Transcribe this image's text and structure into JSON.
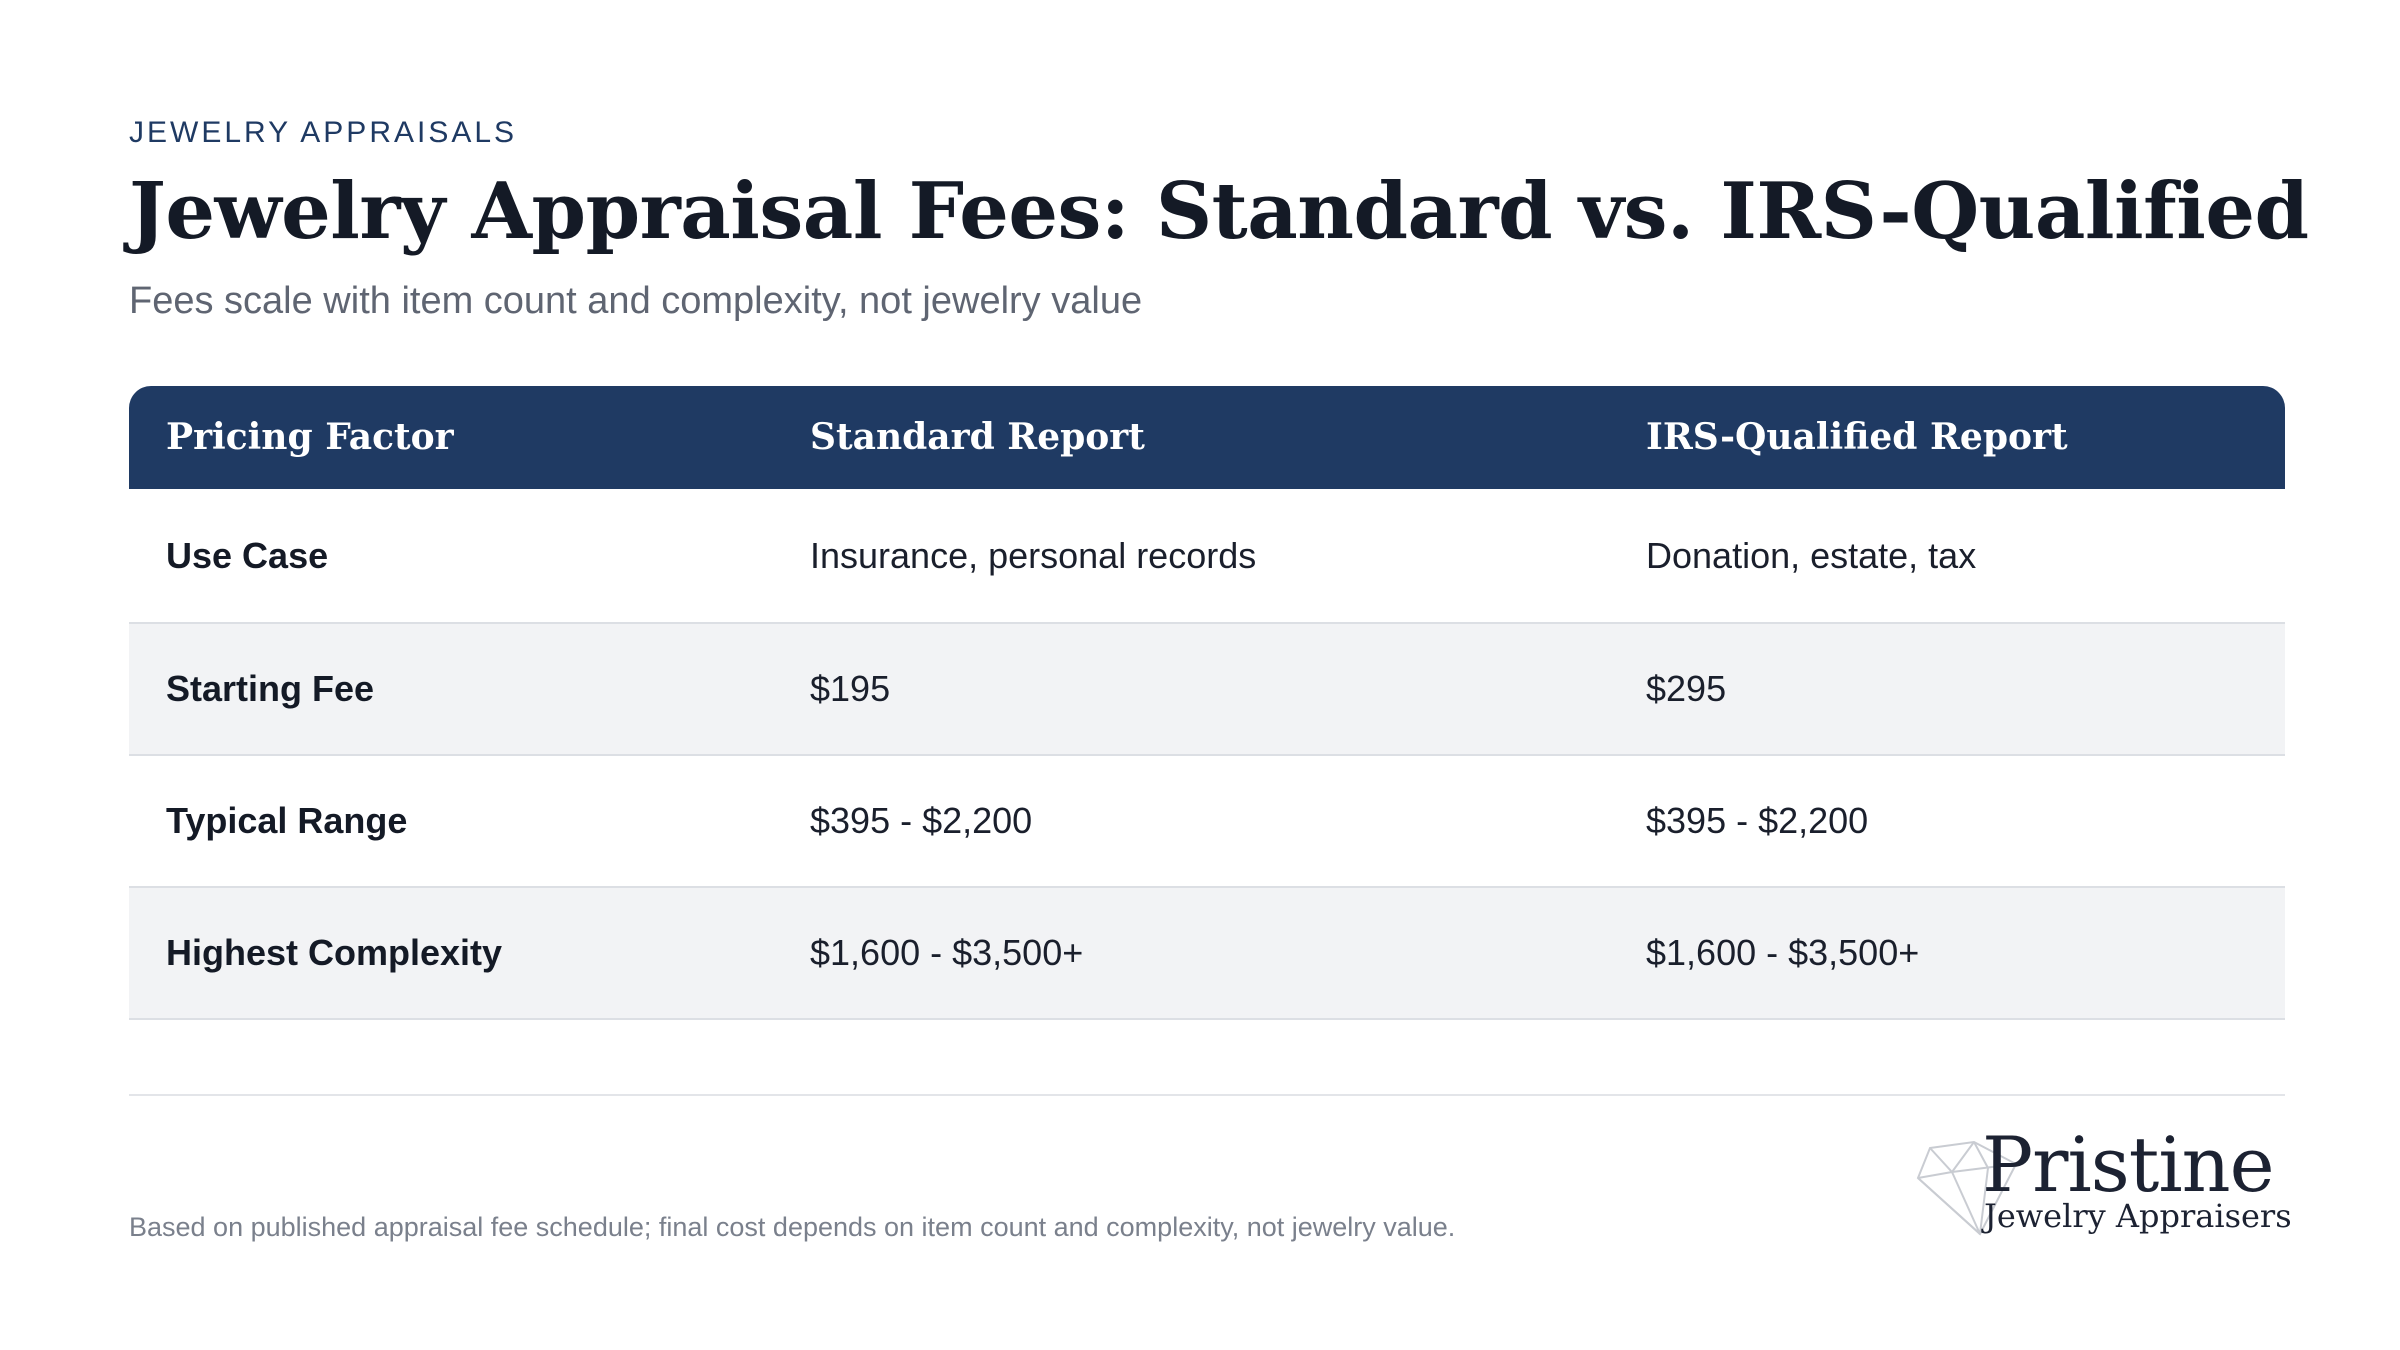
{
  "header": {
    "eyebrow": "JEWELRY APPRAISALS",
    "title": "Jewelry Appraisal Fees: Standard vs. IRS-Qualified",
    "subtitle": "Fees scale with item count and complexity, not jewelry value"
  },
  "table": {
    "columns": [
      "Pricing Factor",
      "Standard Report",
      "IRS-Qualified Report"
    ],
    "rows": [
      [
        "Use Case",
        "Insurance, personal records",
        "Donation, estate, tax"
      ],
      [
        "Starting Fee",
        "$195",
        "$295"
      ],
      [
        "Typical Range",
        "$395 - $2,200",
        "$395 - $2,200"
      ],
      [
        "Highest Complexity",
        "$1,600 - $3,500+",
        "$1,600 - $3,500+"
      ]
    ]
  },
  "footer": {
    "note": "Based on published appraisal fee schedule; final cost depends on item count and complexity, not jewelry value.",
    "logo_name": "Pristine",
    "logo_tagline": "Jewelry Appraisers"
  },
  "colors": {
    "header_bg": "#1f3a63",
    "row_shade": "#f2f3f5",
    "accent_text": "#1f3a63"
  },
  "icons": {
    "logo": "diamond-icon"
  }
}
